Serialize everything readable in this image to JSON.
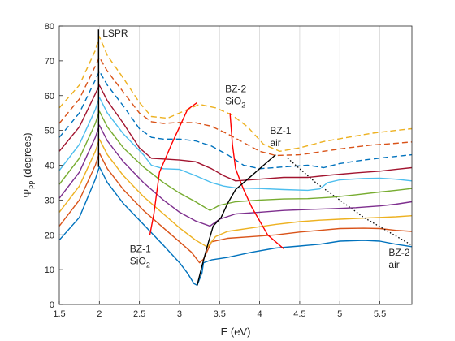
{
  "chart_data": {
    "type": "line",
    "xlabel": "E (eV)",
    "ylabel": "Ψ pp (degrees)",
    "ylabel_main": "Ψ",
    "ylabel_sub": "pp",
    "ylabel_tail": " (degrees)",
    "xlim": [
      1.5,
      5.9
    ],
    "ylim": [
      0,
      80
    ],
    "x_ticks": [
      "1.5",
      "2",
      "2.5",
      "3",
      "3.5",
      "4",
      "4.5",
      "5",
      "5.5"
    ],
    "y_ticks": [
      "0",
      "10",
      "20",
      "30",
      "40",
      "50",
      "60",
      "70",
      "80"
    ],
    "grid": "vertical",
    "series": [
      {
        "color": "#0072BD",
        "dash": "solid",
        "points": [
          [
            1.5,
            18.5
          ],
          [
            1.75,
            25
          ],
          [
            1.95,
            36
          ],
          [
            2.0,
            39.5
          ],
          [
            2.1,
            35
          ],
          [
            2.3,
            29
          ],
          [
            2.55,
            23
          ],
          [
            2.8,
            17
          ],
          [
            3.0,
            12
          ],
          [
            3.1,
            9
          ],
          [
            3.18,
            6
          ],
          [
            3.22,
            5.5
          ],
          [
            3.28,
            9
          ],
          [
            3.3,
            12
          ],
          [
            3.4,
            12.8
          ],
          [
            3.6,
            13.5
          ],
          [
            3.9,
            15
          ],
          [
            4.2,
            16.2
          ],
          [
            4.5,
            16.8
          ],
          [
            4.75,
            17.3
          ],
          [
            5.0,
            18.2
          ],
          [
            5.3,
            18.4
          ],
          [
            5.5,
            18.2
          ],
          [
            5.7,
            17.3
          ],
          [
            5.9,
            16.6
          ]
        ]
      },
      {
        "color": "#D95319",
        "dash": "solid",
        "points": [
          [
            1.5,
            22.5
          ],
          [
            1.75,
            30
          ],
          [
            1.95,
            40
          ],
          [
            2.0,
            43.5
          ],
          [
            2.1,
            39
          ],
          [
            2.3,
            33
          ],
          [
            2.55,
            27
          ],
          [
            2.8,
            22
          ],
          [
            3.0,
            18
          ],
          [
            3.15,
            15
          ],
          [
            3.25,
            12
          ],
          [
            3.3,
            13
          ],
          [
            3.4,
            18
          ],
          [
            3.6,
            19
          ],
          [
            3.9,
            19.5
          ],
          [
            4.2,
            20
          ],
          [
            4.5,
            20.8
          ],
          [
            4.75,
            21.3
          ],
          [
            5.0,
            21.8
          ],
          [
            5.3,
            21.9
          ],
          [
            5.5,
            21.8
          ],
          [
            5.7,
            21.3
          ],
          [
            5.9,
            21
          ]
        ]
      },
      {
        "color": "#EDB120",
        "dash": "solid",
        "points": [
          [
            1.5,
            26.5
          ],
          [
            1.75,
            34
          ],
          [
            1.95,
            44
          ],
          [
            2.0,
            47.5
          ],
          [
            2.1,
            43
          ],
          [
            2.3,
            37
          ],
          [
            2.55,
            31
          ],
          [
            2.8,
            26
          ],
          [
            3.0,
            22
          ],
          [
            3.2,
            18.5
          ],
          [
            3.35,
            16.5
          ],
          [
            3.45,
            19.5
          ],
          [
            3.6,
            21
          ],
          [
            3.9,
            22
          ],
          [
            4.2,
            23
          ],
          [
            4.5,
            23.8
          ],
          [
            4.75,
            24.2
          ],
          [
            5.0,
            24.5
          ],
          [
            5.3,
            24.8
          ],
          [
            5.5,
            25
          ],
          [
            5.7,
            25.2
          ],
          [
            5.9,
            25.5
          ]
        ]
      },
      {
        "color": "#7E2F8E",
        "dash": "solid",
        "points": [
          [
            1.5,
            30.5
          ],
          [
            1.75,
            38
          ],
          [
            1.95,
            48
          ],
          [
            2.0,
            51.5
          ],
          [
            2.1,
            47
          ],
          [
            2.3,
            41
          ],
          [
            2.55,
            35
          ],
          [
            2.8,
            30
          ],
          [
            3.0,
            26.5
          ],
          [
            3.2,
            24
          ],
          [
            3.38,
            22.5
          ],
          [
            3.5,
            24.5
          ],
          [
            3.7,
            26
          ],
          [
            4.0,
            26.5
          ],
          [
            4.3,
            27
          ],
          [
            4.6,
            27.3
          ],
          [
            4.9,
            27.5
          ],
          [
            5.2,
            27.8
          ],
          [
            5.5,
            28.3
          ],
          [
            5.7,
            28.8
          ],
          [
            5.9,
            29.5
          ]
        ]
      },
      {
        "color": "#77AC30",
        "dash": "solid",
        "points": [
          [
            1.5,
            34.5
          ],
          [
            1.75,
            42
          ],
          [
            1.95,
            52
          ],
          [
            2.0,
            55.5
          ],
          [
            2.1,
            51
          ],
          [
            2.3,
            45
          ],
          [
            2.55,
            39.5
          ],
          [
            2.8,
            35
          ],
          [
            3.0,
            32
          ],
          [
            3.2,
            29.5
          ],
          [
            3.38,
            27
          ],
          [
            3.5,
            28.5
          ],
          [
            3.7,
            29.5
          ],
          [
            4.0,
            30
          ],
          [
            4.3,
            30.3
          ],
          [
            4.6,
            30.4
          ],
          [
            4.9,
            30.8
          ],
          [
            5.2,
            31.5
          ],
          [
            5.5,
            32.3
          ],
          [
            5.7,
            32.8
          ],
          [
            5.9,
            33.3
          ]
        ]
      },
      {
        "color": "#4DBEEE",
        "dash": "solid",
        "points": [
          [
            1.5,
            38.5
          ],
          [
            1.75,
            46
          ],
          [
            1.95,
            56
          ],
          [
            2.0,
            59.5
          ],
          [
            2.1,
            55
          ],
          [
            2.3,
            49
          ],
          [
            2.55,
            43
          ],
          [
            2.65,
            40
          ],
          [
            2.8,
            39
          ],
          [
            3.0,
            38.8
          ],
          [
            3.2,
            37
          ],
          [
            3.4,
            35
          ],
          [
            3.55,
            34
          ],
          [
            3.7,
            33.5
          ],
          [
            4.0,
            33.3
          ],
          [
            4.3,
            33
          ],
          [
            4.6,
            32.8
          ],
          [
            4.75,
            33.2
          ],
          [
            4.85,
            35
          ],
          [
            5.0,
            35.8
          ],
          [
            5.3,
            36.2
          ],
          [
            5.5,
            36.3
          ],
          [
            5.7,
            36
          ],
          [
            5.9,
            35.5
          ]
        ]
      },
      {
        "color": "#A2142F",
        "dash": "solid",
        "points": [
          [
            1.5,
            44
          ],
          [
            1.75,
            51
          ],
          [
            1.95,
            60.5
          ],
          [
            2.0,
            63
          ],
          [
            2.1,
            58.5
          ],
          [
            2.3,
            52
          ],
          [
            2.5,
            45
          ],
          [
            2.65,
            42
          ],
          [
            2.8,
            41.8
          ],
          [
            3.0,
            41.5
          ],
          [
            3.2,
            41
          ],
          [
            3.4,
            39
          ],
          [
            3.55,
            37
          ],
          [
            3.7,
            35.5
          ],
          [
            4.0,
            36
          ],
          [
            4.3,
            36.5
          ],
          [
            4.6,
            36.5
          ],
          [
            4.9,
            37.2
          ],
          [
            5.2,
            37.8
          ],
          [
            5.5,
            38.3
          ],
          [
            5.7,
            38.8
          ],
          [
            5.9,
            39.3
          ]
        ]
      },
      {
        "color": "#0072BD",
        "dash": "dashed",
        "points": [
          [
            1.5,
            48
          ],
          [
            1.75,
            55
          ],
          [
            1.95,
            64.5
          ],
          [
            2.0,
            67
          ],
          [
            2.1,
            63
          ],
          [
            2.3,
            57
          ],
          [
            2.5,
            50.5
          ],
          [
            2.65,
            48
          ],
          [
            2.8,
            47.5
          ],
          [
            3.0,
            47.5
          ],
          [
            3.2,
            47
          ],
          [
            3.4,
            45.5
          ],
          [
            3.6,
            43
          ],
          [
            3.8,
            40
          ],
          [
            4.0,
            39
          ],
          [
            4.3,
            39.5
          ],
          [
            4.6,
            40
          ],
          [
            4.8,
            39.3
          ],
          [
            5.0,
            40.5
          ],
          [
            5.3,
            41.5
          ],
          [
            5.6,
            42.3
          ],
          [
            5.9,
            43
          ]
        ]
      },
      {
        "color": "#D95319",
        "dash": "dashed",
        "points": [
          [
            1.5,
            52
          ],
          [
            1.75,
            59
          ],
          [
            1.95,
            68.5
          ],
          [
            2.0,
            71
          ],
          [
            2.1,
            67
          ],
          [
            2.3,
            61
          ],
          [
            2.5,
            55
          ],
          [
            2.65,
            52.5
          ],
          [
            2.8,
            52
          ],
          [
            3.0,
            52.3
          ],
          [
            3.2,
            52.2
          ],
          [
            3.4,
            51.2
          ],
          [
            3.6,
            49
          ],
          [
            3.8,
            46.5
          ],
          [
            4.0,
            44
          ],
          [
            4.2,
            42.8
          ],
          [
            4.5,
            43
          ],
          [
            4.8,
            44
          ],
          [
            5.1,
            45
          ],
          [
            5.4,
            45.8
          ],
          [
            5.7,
            46.3
          ],
          [
            5.9,
            46.7
          ]
        ]
      },
      {
        "color": "#EDB120",
        "dash": "dashed",
        "points": [
          [
            1.5,
            56.5
          ],
          [
            1.75,
            63
          ],
          [
            1.95,
            73
          ],
          [
            2.0,
            77
          ],
          [
            2.1,
            71.5
          ],
          [
            2.3,
            65
          ],
          [
            2.5,
            58
          ],
          [
            2.65,
            54
          ],
          [
            2.85,
            53.5
          ],
          [
            3.05,
            55.5
          ],
          [
            3.25,
            57.5
          ],
          [
            3.45,
            56.5
          ],
          [
            3.65,
            54.5
          ],
          [
            3.85,
            51
          ],
          [
            4.05,
            46
          ],
          [
            4.25,
            44
          ],
          [
            4.5,
            45
          ],
          [
            4.8,
            46.8
          ],
          [
            5.1,
            48
          ],
          [
            5.4,
            49.2
          ],
          [
            5.7,
            50
          ],
          [
            5.9,
            50.5
          ]
        ]
      }
    ],
    "guide_lines": [
      {
        "name": "LSPR",
        "color": "#000000",
        "style": "solid",
        "points": [
          [
            1.99,
            79
          ],
          [
            1.99,
            39.5
          ]
        ]
      },
      {
        "name": "BZ-1 SiO2",
        "color": "#FF0000",
        "style": "solid",
        "points": [
          [
            2.63,
            20
          ],
          [
            2.68,
            26
          ],
          [
            2.75,
            38
          ],
          [
            2.9,
            46
          ],
          [
            3.1,
            56
          ],
          [
            3.22,
            58
          ]
        ]
      },
      {
        "name": "BZ-2 SiO2",
        "color": "#FF0000",
        "style": "solid",
        "points": [
          [
            3.63,
            55
          ],
          [
            3.66,
            46
          ],
          [
            3.7,
            39
          ],
          [
            3.75,
            36
          ],
          [
            3.8,
            33
          ],
          [
            3.9,
            28
          ],
          [
            4.1,
            20
          ],
          [
            4.3,
            16
          ]
        ]
      },
      {
        "name": "BZ-1 air",
        "color": "#000000",
        "style": "solid",
        "points": [
          [
            3.22,
            5.5
          ],
          [
            3.28,
            11
          ],
          [
            3.35,
            17
          ],
          [
            3.42,
            22.5
          ],
          [
            3.52,
            25
          ],
          [
            3.6,
            29
          ],
          [
            3.7,
            33
          ],
          [
            3.85,
            36
          ],
          [
            4.05,
            40
          ],
          [
            4.2,
            43
          ]
        ]
      },
      {
        "name": "BZ-2 air",
        "color": "#000000",
        "style": "dotted",
        "points": [
          [
            4.35,
            42
          ],
          [
            4.7,
            35
          ],
          [
            5.0,
            30
          ],
          [
            5.3,
            25
          ],
          [
            5.6,
            21
          ],
          [
            5.9,
            17
          ]
        ]
      }
    ],
    "annotations": [
      {
        "name": "lspr",
        "lines": [
          {
            "text": "LSPR"
          }
        ],
        "x": 2.04,
        "y": 77
      },
      {
        "name": "bz2-sio2",
        "lines": [
          {
            "text": "BZ-2"
          },
          {
            "text": "SiO",
            "sub": "2"
          }
        ],
        "x": 3.57,
        "y": 61
      },
      {
        "name": "bz1-air",
        "lines": [
          {
            "text": "BZ-1"
          },
          {
            "text": "air"
          }
        ],
        "x": 4.13,
        "y": 49
      },
      {
        "name": "bz1-sio2",
        "lines": [
          {
            "text": "BZ-1"
          },
          {
            "text": "SiO",
            "sub": "2"
          }
        ],
        "x": 2.38,
        "y": 15
      },
      {
        "name": "bz2-air",
        "lines": [
          {
            "text": "BZ-2"
          },
          {
            "text": "air"
          }
        ],
        "x": 5.61,
        "y": 14
      }
    ]
  }
}
